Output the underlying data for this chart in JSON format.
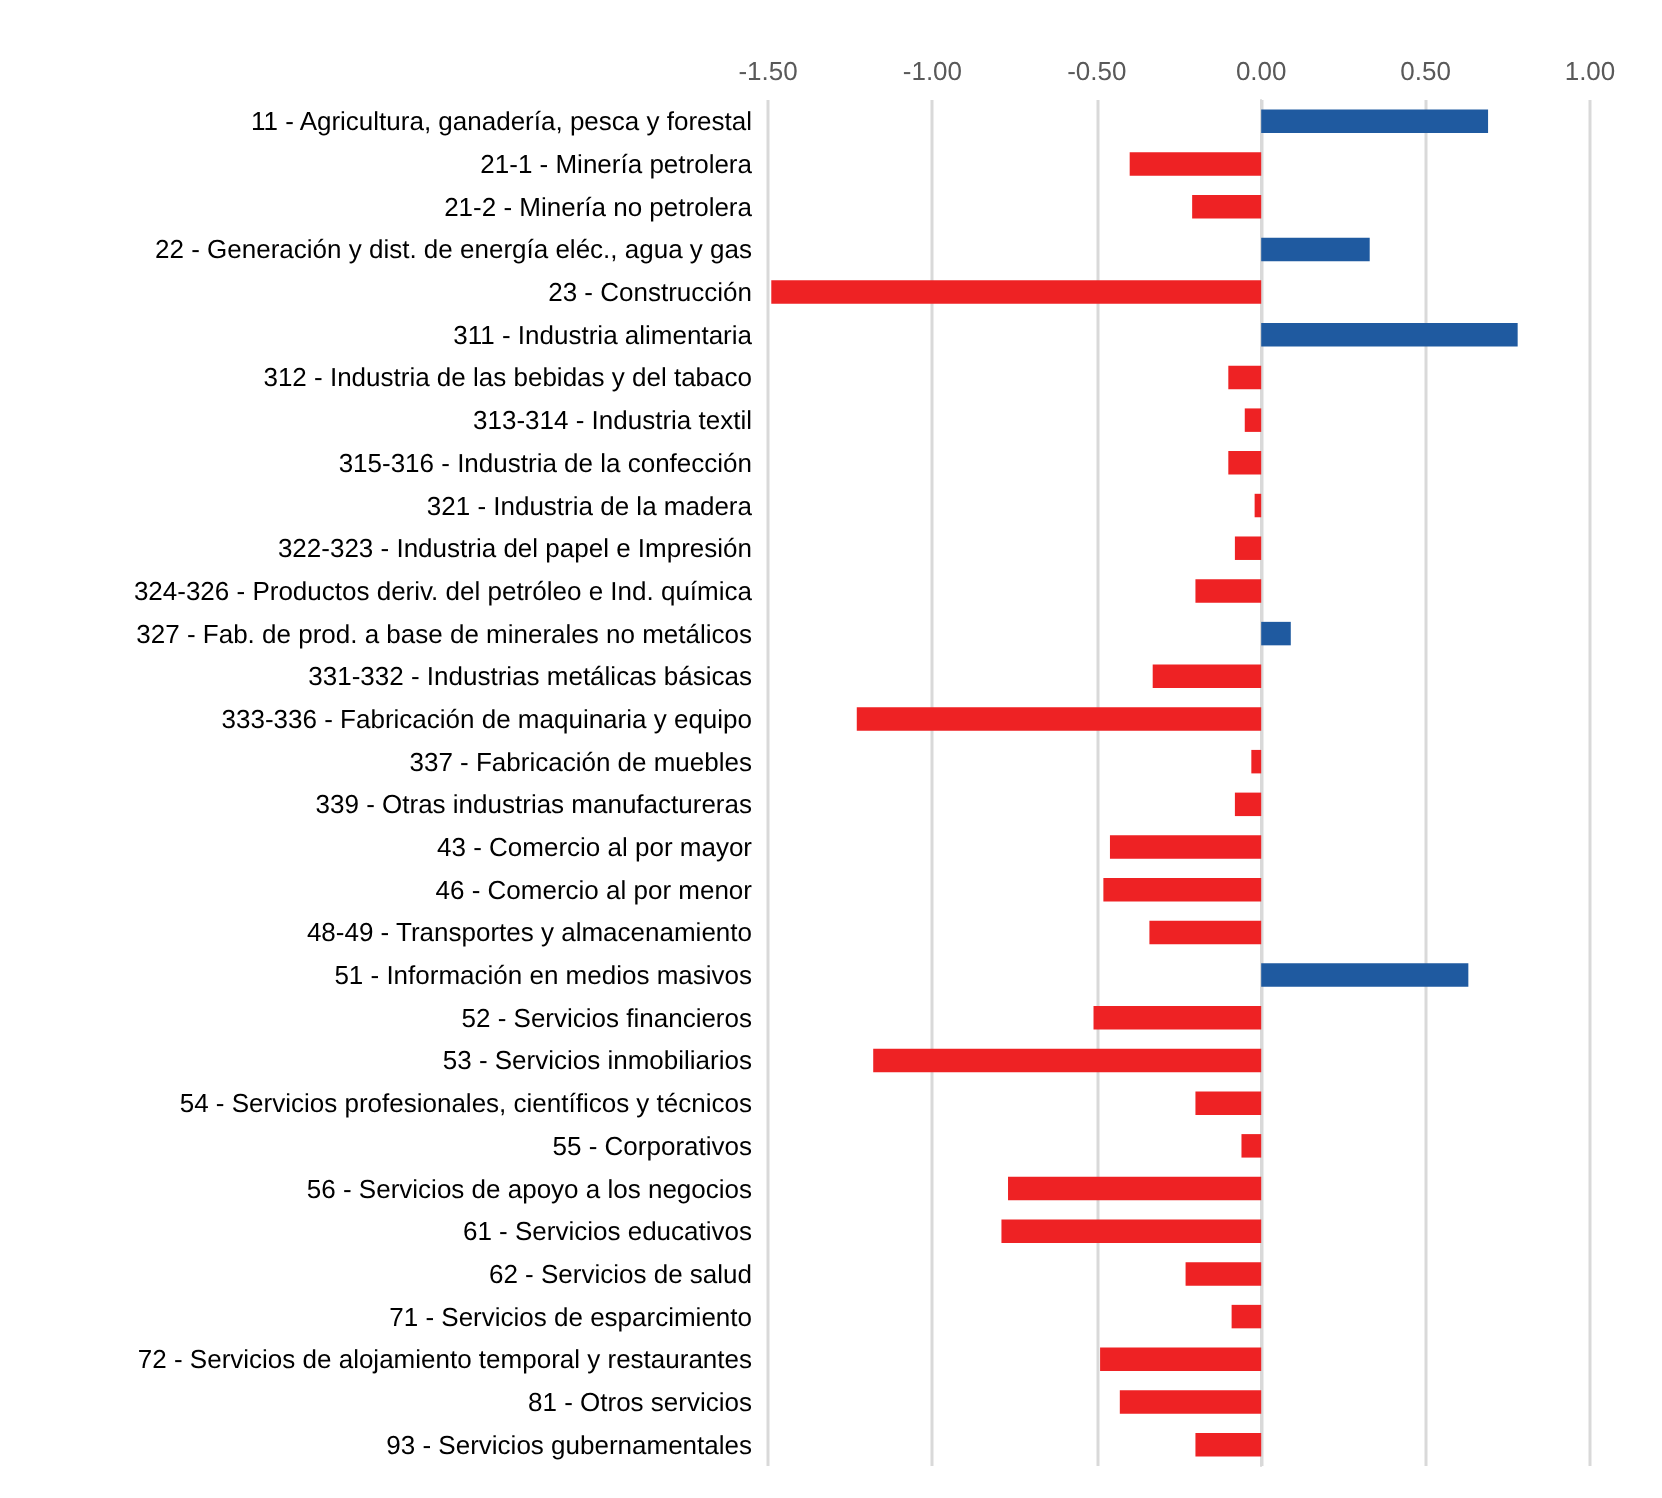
{
  "chart_data": {
    "type": "bar",
    "orientation": "horizontal",
    "categories": [
      "11 - Agricultura, ganadería, pesca y forestal",
      "21-1 - Minería petrolera",
      "21-2 - Minería no petrolera",
      "22 - Generación y dist. de energía eléc., agua y gas",
      "23 - Construcción",
      "311 - Industria alimentaria",
      "312 - Industria de las bebidas y del tabaco",
      "313-314 - Industria textil",
      "315-316 - Industria de la confección",
      "321 - Industria de la madera",
      "322-323 - Industria del papel e Impresión",
      "324-326 - Productos deriv. del petróleo e Ind. química",
      "327 - Fab. de prod. a base de minerales no metálicos",
      "331-332 - Industrias metálicas básicas",
      "333-336 - Fabricación de maquinaria y equipo",
      "337 - Fabricación de muebles",
      "339 - Otras industrias manufactureras",
      "43 - Comercio al por mayor",
      "46 - Comercio al por menor",
      "48-49 - Transportes y almacenamiento",
      "51 - Información en medios masivos",
      "52 - Servicios financieros",
      "53 - Servicios inmobiliarios",
      "54 - Servicios profesionales, científicos y técnicos",
      "55 - Corporativos",
      "56 - Servicios de apoyo a los negocios",
      "61 - Servicios educativos",
      "62 - Servicios de salud",
      "71 - Servicios de esparcimiento",
      "72 - Servicios de alojamiento temporal y restaurantes",
      "81 - Otros servicios",
      "93 - Servicios gubernamentales"
    ],
    "values": [
      0.69,
      -0.4,
      -0.21,
      0.33,
      -1.49,
      0.78,
      -0.1,
      -0.05,
      -0.1,
      -0.02,
      -0.08,
      -0.2,
      0.09,
      -0.33,
      -1.23,
      -0.03,
      -0.08,
      -0.46,
      -0.48,
      -0.34,
      0.63,
      -0.51,
      -1.18,
      -0.2,
      -0.06,
      -0.77,
      -0.79,
      -0.23,
      -0.09,
      -0.49,
      -0.43,
      -0.2
    ],
    "colors": [
      "#1f5aa0",
      "#ee2224",
      "#ee2224",
      "#1f5aa0",
      "#ee2224",
      "#1f5aa0",
      "#ee2224",
      "#ee2224",
      "#ee2224",
      "#ee2224",
      "#ee2224",
      "#ee2224",
      "#1f5aa0",
      "#ee2224",
      "#ee2224",
      "#ee2224",
      "#ee2224",
      "#ee2224",
      "#ee2224",
      "#ee2224",
      "#1f5aa0",
      "#ee2224",
      "#ee2224",
      "#ee2224",
      "#ee2224",
      "#ee2224",
      "#ee2224",
      "#ee2224",
      "#ee2224",
      "#ee2224",
      "#ee2224",
      "#ee2224"
    ],
    "xlim": [
      -1.5,
      1.0
    ],
    "xticks": [
      {
        "value": -1.5,
        "label": "-1.50"
      },
      {
        "value": -1.0,
        "label": "-1.00"
      },
      {
        "value": -0.5,
        "label": "-0.50"
      },
      {
        "value": 0,
        "label": "0.00"
      },
      {
        "value": 0.5,
        "label": "0.50"
      },
      {
        "value": 1.0,
        "label": "1.00"
      }
    ],
    "grid": "x"
  }
}
